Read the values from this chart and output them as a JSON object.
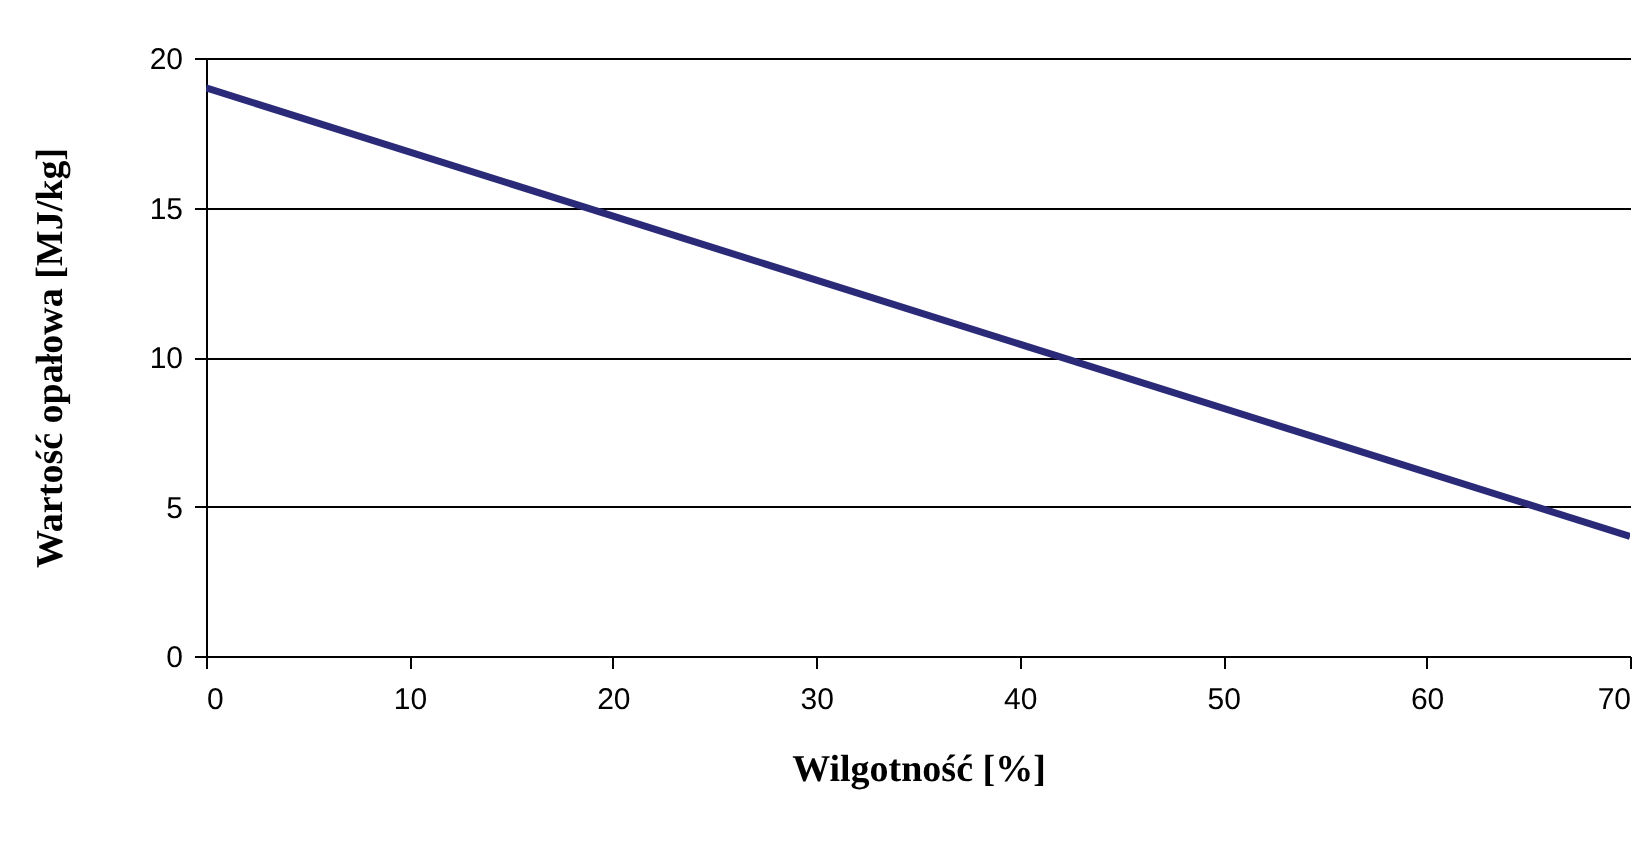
{
  "chart_data": {
    "type": "line",
    "xlabel": "Wilgotność [%]",
    "ylabel": "Wartość opałowa [MJ/kg]",
    "x": [
      0,
      70
    ],
    "series": [
      {
        "color": "#2b2a78",
        "values": [
          19,
          4
        ]
      }
    ],
    "xlim": [
      0,
      70
    ],
    "xticks": [
      0,
      10,
      20,
      30,
      40,
      50,
      60,
      70
    ],
    "ylim": [
      0,
      20
    ],
    "yticks": [
      0,
      5,
      10,
      15,
      20
    ],
    "grid": "y",
    "legend": false,
    "marker": "none",
    "line_style": "solid"
  }
}
